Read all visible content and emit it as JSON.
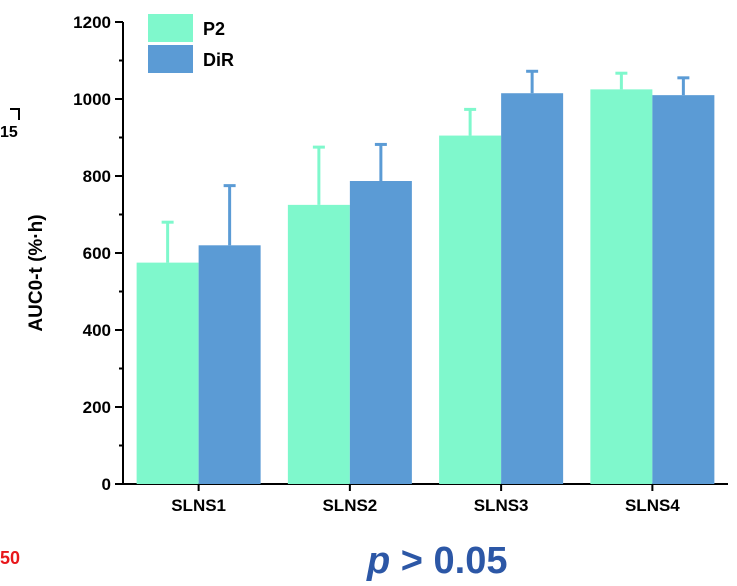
{
  "chart_data": {
    "type": "bar",
    "categories": [
      "SLNS1",
      "SLNS2",
      "SLNS3",
      "SLNS4"
    ],
    "series": [
      {
        "name": "P2",
        "values": [
          575,
          725,
          905,
          1025
        ],
        "errors": [
          105,
          150,
          68,
          42
        ],
        "color": "#7ff8cc"
      },
      {
        "name": "DiR",
        "values": [
          620,
          787,
          1015,
          1010
        ],
        "errors": [
          155,
          95,
          57,
          45
        ],
        "color": "#5b9bd5"
      }
    ],
    "ylabel": "AUC0-t (%·h)",
    "ylim": [
      0,
      1200
    ],
    "yticks": [
      0,
      200,
      400,
      600,
      800,
      1000,
      1200
    ],
    "legend_position": "top-left",
    "grid": false
  },
  "annotation": {
    "p_symbol": "p",
    "p_text": " > 0.05"
  },
  "fragments": {
    "left_text": "15",
    "red_text": "50"
  }
}
